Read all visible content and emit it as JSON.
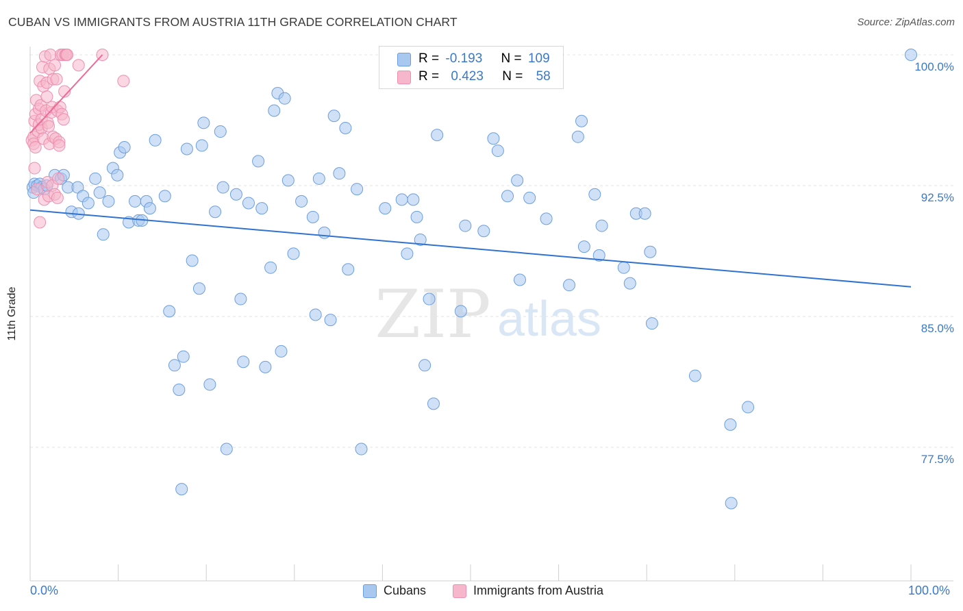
{
  "title": "CUBAN VS IMMIGRANTS FROM AUSTRIA 11TH GRADE CORRELATION CHART",
  "source": "Source: ZipAtlas.com",
  "watermark": {
    "zip": "ZIP",
    "atlas": "atlas"
  },
  "colors": {
    "blue_fill": "#a9c8f0",
    "blue_stroke": "#6a9ee0",
    "blue_line": "#2f72cf",
    "pink_fill": "#f6b6cb",
    "pink_stroke": "#ee8fb0",
    "pink_line": "#ec6a96",
    "axis_text": "#3a78c9",
    "grid": "#e3e3e3"
  },
  "legend": {
    "rows": [
      {
        "r_label": "R =",
        "r_value": "-0.193",
        "n_label": "N =",
        "n_value": "109"
      },
      {
        "r_label": "R =",
        "r_value": "0.423",
        "n_label": "N =",
        "n_value": "58"
      }
    ]
  },
  "bottom_legend": {
    "cubans": "Cubans",
    "austria": "Immigrants from Austria"
  },
  "chart_data": {
    "type": "scatter",
    "title": "CUBAN VS IMMIGRANTS FROM AUSTRIA 11TH GRADE CORRELATION CHART",
    "xlabel": "",
    "ylabel": "11th Grade",
    "xlim": [
      0,
      100
    ],
    "ylim": [
      71,
      101
    ],
    "y_ticks": [
      100.0,
      92.5,
      85.0,
      77.5
    ],
    "y_tick_labels": [
      "100.0%",
      "92.5%",
      "85.0%",
      "77.5%"
    ],
    "x_tick_labels": [
      "0.0%",
      "100.0%"
    ],
    "legend_position": "top-center",
    "series": [
      {
        "name": "Cubans",
        "r": -0.193,
        "n": 109,
        "trend": {
          "x": [
            0,
            100
          ],
          "y": [
            91.1,
            86.7
          ]
        },
        "points": [
          [
            0.3,
            92.4
          ],
          [
            0.5,
            92.6
          ],
          [
            0.8,
            92.5
          ],
          [
            1.1,
            92.6
          ],
          [
            1.3,
            92.4
          ],
          [
            1.6,
            92.3
          ],
          [
            1.9,
            92.5
          ],
          [
            0.4,
            92.1
          ],
          [
            2.8,
            93.1
          ],
          [
            3.5,
            92.9
          ],
          [
            3.8,
            93.1
          ],
          [
            4.3,
            92.4
          ],
          [
            4.7,
            91.0
          ],
          [
            5.4,
            92.4
          ],
          [
            5.5,
            90.9
          ],
          [
            6.0,
            91.9
          ],
          [
            6.6,
            91.5
          ],
          [
            7.4,
            92.9
          ],
          [
            7.9,
            92.1
          ],
          [
            8.3,
            89.7
          ],
          [
            8.9,
            91.6
          ],
          [
            9.4,
            93.5
          ],
          [
            9.9,
            93.1
          ],
          [
            10.2,
            94.4
          ],
          [
            10.7,
            94.7
          ],
          [
            11.2,
            90.4
          ],
          [
            11.9,
            91.6
          ],
          [
            12.3,
            90.5
          ],
          [
            12.7,
            90.5
          ],
          [
            13.2,
            91.6
          ],
          [
            13.6,
            91.2
          ],
          [
            14.2,
            95.1
          ],
          [
            15.3,
            91.9
          ],
          [
            15.8,
            85.3
          ],
          [
            16.4,
            82.2
          ],
          [
            16.9,
            80.8
          ],
          [
            17.2,
            75.1
          ],
          [
            17.4,
            82.7
          ],
          [
            17.8,
            94.6
          ],
          [
            18.4,
            88.2
          ],
          [
            19.2,
            86.6
          ],
          [
            19.5,
            94.8
          ],
          [
            19.7,
            96.1
          ],
          [
            20.4,
            81.1
          ],
          [
            21.0,
            91.0
          ],
          [
            21.6,
            95.6
          ],
          [
            21.9,
            92.4
          ],
          [
            22.3,
            77.4
          ],
          [
            23.4,
            92.0
          ],
          [
            23.9,
            86.0
          ],
          [
            24.2,
            82.4
          ],
          [
            24.8,
            91.5
          ],
          [
            25.9,
            93.9
          ],
          [
            26.3,
            91.2
          ],
          [
            26.7,
            82.1
          ],
          [
            27.3,
            87.8
          ],
          [
            27.7,
            96.8
          ],
          [
            28.1,
            97.8
          ],
          [
            28.5,
            83.0
          ],
          [
            28.9,
            97.5
          ],
          [
            29.3,
            92.8
          ],
          [
            29.9,
            88.6
          ],
          [
            30.8,
            91.6
          ],
          [
            32.1,
            90.7
          ],
          [
            32.4,
            85.1
          ],
          [
            32.8,
            92.9
          ],
          [
            33.4,
            89.8
          ],
          [
            34.1,
            84.8
          ],
          [
            34.5,
            96.5
          ],
          [
            35.1,
            93.2
          ],
          [
            35.8,
            95.8
          ],
          [
            36.1,
            87.7
          ],
          [
            37.1,
            92.3
          ],
          [
            37.6,
            77.4
          ],
          [
            40.3,
            91.2
          ],
          [
            42.2,
            91.7
          ],
          [
            42.8,
            88.6
          ],
          [
            43.5,
            91.7
          ],
          [
            43.9,
            90.7
          ],
          [
            44.3,
            89.4
          ],
          [
            44.8,
            82.2
          ],
          [
            45.3,
            86.0
          ],
          [
            45.8,
            80.0
          ],
          [
            46.2,
            95.4
          ],
          [
            48.9,
            85.3
          ],
          [
            49.4,
            90.2
          ],
          [
            51.5,
            89.9
          ],
          [
            52.6,
            95.2
          ],
          [
            53.1,
            94.5
          ],
          [
            54.2,
            91.9
          ],
          [
            55.3,
            92.8
          ],
          [
            55.6,
            87.1
          ],
          [
            56.7,
            91.8
          ],
          [
            58.6,
            90.6
          ],
          [
            61.2,
            86.8
          ],
          [
            62.2,
            95.3
          ],
          [
            62.6,
            96.2
          ],
          [
            62.9,
            89.0
          ],
          [
            64.1,
            92.0
          ],
          [
            64.6,
            88.5
          ],
          [
            64.9,
            90.2
          ],
          [
            67.4,
            87.8
          ],
          [
            68.1,
            86.9
          ],
          [
            68.8,
            90.9
          ],
          [
            69.8,
            90.9
          ],
          [
            70.4,
            88.7
          ],
          [
            70.6,
            84.6
          ],
          [
            75.5,
            81.6
          ],
          [
            79.5,
            78.8
          ],
          [
            79.6,
            74.3
          ],
          [
            81.5,
            79.8
          ],
          [
            100.0,
            100.0
          ]
        ]
      },
      {
        "name": "Immigrants from Austria",
        "r": 0.423,
        "n": 58,
        "trend": {
          "x": [
            0,
            8.2
          ],
          "y": [
            95.5,
            100.0
          ]
        },
        "points": [
          [
            0.2,
            95.1
          ],
          [
            0.4,
            95.3
          ],
          [
            0.4,
            94.9
          ],
          [
            0.5,
            96.2
          ],
          [
            0.5,
            93.5
          ],
          [
            0.6,
            96.6
          ],
          [
            0.6,
            94.7
          ],
          [
            0.7,
            97.4
          ],
          [
            0.8,
            92.3
          ],
          [
            0.9,
            95.6
          ],
          [
            1.0,
            96.0
          ],
          [
            1.0,
            96.9
          ],
          [
            1.1,
            98.5
          ],
          [
            1.1,
            90.4
          ],
          [
            1.2,
            97.1
          ],
          [
            1.3,
            95.8
          ],
          [
            1.3,
            96.3
          ],
          [
            1.4,
            99.3
          ],
          [
            1.5,
            98.2
          ],
          [
            1.5,
            95.2
          ],
          [
            1.6,
            91.7
          ],
          [
            1.7,
            99.9
          ],
          [
            1.8,
            96.8
          ],
          [
            1.9,
            97.6
          ],
          [
            1.9,
            98.4
          ],
          [
            2.0,
            92.7
          ],
          [
            2.0,
            96.1
          ],
          [
            2.1,
            91.9
          ],
          [
            2.1,
            95.9
          ],
          [
            2.2,
            99.2
          ],
          [
            2.2,
            94.9
          ],
          [
            2.3,
            100.0
          ],
          [
            2.4,
            96.7
          ],
          [
            2.5,
            97.0
          ],
          [
            2.5,
            92.5
          ],
          [
            2.6,
            95.3
          ],
          [
            2.6,
            98.6
          ],
          [
            2.8,
            92.0
          ],
          [
            2.8,
            99.4
          ],
          [
            2.9,
            95.2
          ],
          [
            3.0,
            98.6
          ],
          [
            3.1,
            91.8
          ],
          [
            3.1,
            96.8
          ],
          [
            3.2,
            92.9
          ],
          [
            3.3,
            95.0
          ],
          [
            3.3,
            94.8
          ],
          [
            3.4,
            97.0
          ],
          [
            3.5,
            100.0
          ],
          [
            3.6,
            96.6
          ],
          [
            3.7,
            100.0
          ],
          [
            3.8,
            96.3
          ],
          [
            3.9,
            97.9
          ],
          [
            4.0,
            100.0
          ],
          [
            4.1,
            100.0
          ],
          [
            4.2,
            100.0
          ],
          [
            5.5,
            99.4
          ],
          [
            8.2,
            100.0
          ],
          [
            10.6,
            98.5
          ]
        ]
      }
    ]
  }
}
